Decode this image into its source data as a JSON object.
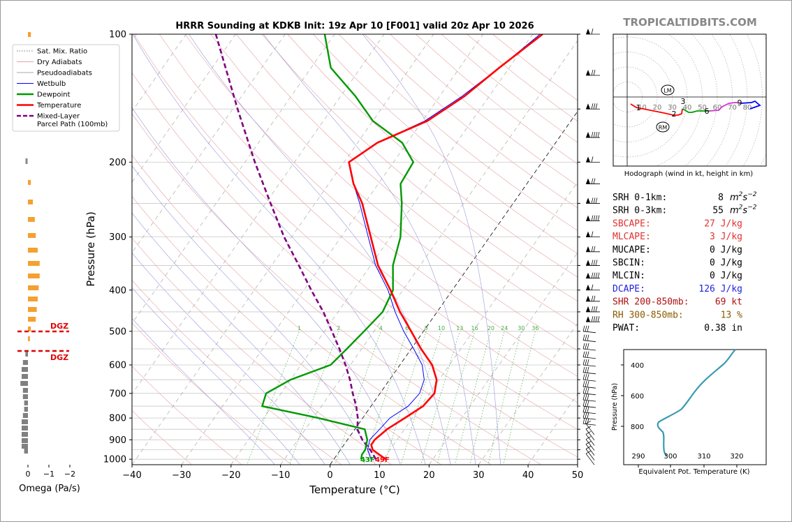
{
  "title": "HRRR Sounding at KDKB Init: 19z Apr 10 [F001] valid 20z Apr 10 2026",
  "watermark": "TROPICALTIDBITS.COM",
  "legend": [
    {
      "label": "Sat. Mix. Ratio",
      "color": "#777777",
      "style": "dotted"
    },
    {
      "label": "Dry Adiabats",
      "color": "#e8a0a0",
      "style": "solid"
    },
    {
      "label": "Pseudoadiabats",
      "color": "#aaaaaa",
      "style": "solid"
    },
    {
      "label": "Wetbulb",
      "color": "#0000ff",
      "style": "solid"
    },
    {
      "label": "Dewpoint",
      "color": "#009900",
      "style": "solid"
    },
    {
      "label": "Temperature",
      "color": "#ff0000",
      "style": "solid"
    },
    {
      "label": "Mixed-Layer",
      "label2": "Parcel Path (100mb)",
      "color": "#7f007f",
      "style": "dashed"
    }
  ],
  "omega": {
    "xlabel": "Omega (Pa/s)",
    "xticks": [
      "0",
      "−1",
      "−2"
    ],
    "dgz_label": "DGZ"
  },
  "chart_data": {
    "type": "skewt",
    "xlabel": "Temperature (°C)",
    "ylabel": "Pressure (hPa)",
    "xlim": [
      -40,
      50
    ],
    "ylim": [
      1030,
      100
    ],
    "yscale": "log",
    "xticks": [
      "−40",
      "−30",
      "−20",
      "−10",
      "0",
      "10",
      "20",
      "30",
      "40",
      "50"
    ],
    "yticks": [
      "100",
      "200",
      "300",
      "400",
      "500",
      "600",
      "700",
      "800",
      "900",
      "1000"
    ],
    "temperature": [
      [
        1000,
        10.5
      ],
      [
        975,
        8.5
      ],
      [
        950,
        6.5
      ],
      [
        925,
        5.5
      ],
      [
        900,
        5.5
      ],
      [
        850,
        6.5
      ],
      [
        800,
        8.5
      ],
      [
        750,
        10.5
      ],
      [
        700,
        11
      ],
      [
        650,
        9.5
      ],
      [
        600,
        6.5
      ],
      [
        550,
        2
      ],
      [
        500,
        -2.5
      ],
      [
        450,
        -7.5
      ],
      [
        400,
        -12.5
      ],
      [
        350,
        -18.5
      ],
      [
        300,
        -24
      ],
      [
        250,
        -30.5
      ],
      [
        225,
        -35
      ],
      [
        200,
        -39
      ],
      [
        180,
        -36
      ],
      [
        160,
        -29
      ],
      [
        140,
        -25
      ],
      [
        120,
        -22
      ],
      [
        100,
        -18
      ]
    ],
    "dewpoint": [
      [
        1000,
        5.5
      ],
      [
        975,
        5
      ],
      [
        950,
        5
      ],
      [
        925,
        4.5
      ],
      [
        900,
        4
      ],
      [
        850,
        2
      ],
      [
        800,
        -9
      ],
      [
        750,
        -22
      ],
      [
        700,
        -23
      ],
      [
        650,
        -20
      ],
      [
        600,
        -14
      ],
      [
        550,
        -13
      ],
      [
        500,
        -12
      ],
      [
        450,
        -11
      ],
      [
        400,
        -12
      ],
      [
        350,
        -15.5
      ],
      [
        300,
        -18
      ],
      [
        250,
        -22.5
      ],
      [
        225,
        -25.5
      ],
      [
        200,
        -26
      ],
      [
        180,
        -31
      ],
      [
        160,
        -40
      ],
      [
        140,
        -47
      ],
      [
        120,
        -56
      ],
      [
        100,
        -62
      ]
    ],
    "wetbulb": [
      [
        1000,
        7.5
      ],
      [
        975,
        6.5
      ],
      [
        950,
        5.5
      ],
      [
        925,
        5
      ],
      [
        900,
        4.5
      ],
      [
        850,
        5
      ],
      [
        800,
        5.5
      ],
      [
        750,
        7.5
      ],
      [
        700,
        8
      ],
      [
        650,
        7
      ],
      [
        600,
        4.5
      ],
      [
        550,
        0.5
      ],
      [
        500,
        -4
      ],
      [
        450,
        -8.5
      ],
      [
        400,
        -13
      ],
      [
        350,
        -19
      ],
      [
        300,
        -24.5
      ],
      [
        250,
        -31
      ],
      [
        225,
        -35
      ],
      [
        200,
        -39
      ],
      [
        180,
        -36
      ],
      [
        160,
        -29.5
      ],
      [
        140,
        -25.5
      ],
      [
        120,
        -22
      ],
      [
        100,
        -18.5
      ]
    ],
    "parcel": [
      [
        1000,
        8.5
      ],
      [
        950,
        6
      ],
      [
        900,
        3
      ],
      [
        850,
        0.5
      ],
      [
        800,
        -1
      ],
      [
        750,
        -3
      ],
      [
        700,
        -5.5
      ],
      [
        650,
        -8
      ],
      [
        600,
        -11
      ],
      [
        550,
        -14.5
      ],
      [
        500,
        -18.5
      ],
      [
        450,
        -23
      ],
      [
        400,
        -28.5
      ],
      [
        350,
        -34.5
      ],
      [
        300,
        -41.5
      ],
      [
        250,
        -49
      ],
      [
        200,
        -58
      ],
      [
        150,
        -69
      ],
      [
        100,
        -84
      ]
    ],
    "mixing_ratio_labels": [
      "1",
      "2",
      "4",
      "6",
      "8",
      "10",
      "13",
      "16",
      "20",
      "24",
      "30",
      "36"
    ],
    "surface_temp_label": "49F",
    "surface_dewpoint_label": "43F"
  },
  "hodograph": {
    "caption": "Hodograph (wind in kt, height in km)",
    "ring_labels": [
      "10",
      "20",
      "30",
      "40",
      "50",
      "60",
      "70",
      "80"
    ],
    "height_labels": [
      "1",
      "2",
      "3",
      "6",
      "9"
    ],
    "lm_label": "LM",
    "rm_label": "RM"
  },
  "stats": [
    {
      "label": "SRH 0-1km:",
      "value": "8",
      "unit": "m2s-2",
      "color": "#000000"
    },
    {
      "label": "SRH 0-3km:",
      "value": "55",
      "unit": "m2s-2",
      "color": "#000000"
    },
    {
      "label": "SBCAPE:",
      "value": "27 J/kg",
      "color": "#e03030"
    },
    {
      "label": "MLCAPE:",
      "value": "3 J/kg",
      "color": "#e03030"
    },
    {
      "label": "MUCAPE:",
      "value": "0 J/kg",
      "color": "#000000"
    },
    {
      "label": "SBCIN:",
      "value": "0 J/kg",
      "color": "#000000"
    },
    {
      "label": "MLCIN:",
      "value": "0 J/kg",
      "color": "#000000"
    },
    {
      "label": "DCAPE:",
      "value": "126 J/kg",
      "color": "#2020e0"
    },
    {
      "label": "SHR 200-850mb:",
      "value": "69 kt",
      "color": "#b01010"
    },
    {
      "label": "RH 300-850mb:",
      "value": "13 %",
      "color": "#8b5a00"
    },
    {
      "label": "PWAT:",
      "value": "0.38 in",
      "color": "#000000"
    }
  ],
  "theta_e": {
    "xlabel": "Equivalent Pot. Temperature (K)",
    "ylabel": "Pressure (hPa)",
    "xticks": [
      "290",
      "300",
      "310",
      "320"
    ],
    "yticks": [
      "400",
      "600",
      "800"
    ]
  }
}
